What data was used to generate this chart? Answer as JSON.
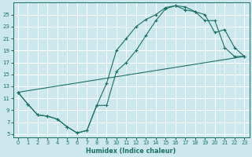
{
  "xlabel": "Humidex (Indice chaleur)",
  "bg_color": "#cce8ec",
  "line_color": "#1a7060",
  "grid_color": "#ffffff",
  "xlim": [
    -0.5,
    23.5
  ],
  "ylim": [
    4.5,
    27
  ],
  "xticks": [
    0,
    1,
    2,
    3,
    4,
    5,
    6,
    7,
    8,
    9,
    10,
    11,
    12,
    13,
    14,
    15,
    16,
    17,
    18,
    19,
    20,
    21,
    22,
    23
  ],
  "yticks": [
    5,
    7,
    9,
    11,
    13,
    15,
    17,
    19,
    21,
    23,
    25
  ],
  "line1_x": [
    0,
    1,
    2,
    3,
    4,
    5,
    6,
    7,
    8,
    9,
    10,
    11,
    12,
    13,
    14,
    15,
    16,
    17,
    18,
    19,
    20,
    21,
    22,
    23
  ],
  "line1_y": [
    12,
    10,
    8.2,
    8.0,
    7.5,
    6.2,
    5.2,
    5.6,
    9.8,
    13.5,
    19.0,
    21.0,
    23.0,
    24.2,
    25.0,
    26.2,
    26.5,
    26.3,
    25.5,
    25.0,
    22.0,
    22.5,
    19.5,
    18.0
  ],
  "line1_markers_x": [
    0,
    1,
    2,
    3,
    4,
    5,
    6,
    7,
    8,
    9,
    10,
    11,
    12,
    13,
    14,
    15,
    16,
    17,
    18,
    19,
    20,
    21,
    22,
    23
  ],
  "line1_markers_y": [
    12,
    10,
    8.2,
    8.0,
    7.5,
    6.2,
    5.2,
    5.6,
    9.8,
    13.5,
    19.0,
    21.0,
    23.0,
    24.2,
    25.0,
    26.2,
    26.5,
    26.3,
    25.5,
    25.0,
    22.0,
    22.5,
    19.5,
    18.0
  ],
  "line2_x": [
    0,
    1,
    2,
    3,
    4,
    5,
    6,
    7,
    8,
    9,
    10,
    11,
    12,
    13,
    14,
    15,
    16,
    17,
    18,
    19,
    20,
    21,
    22,
    23
  ],
  "line2_y": [
    12,
    10,
    8.2,
    8.0,
    7.5,
    6.2,
    5.2,
    5.6,
    9.8,
    9.8,
    15.5,
    17.0,
    19.0,
    21.5,
    24.0,
    26.0,
    26.5,
    25.8,
    25.5,
    24.0,
    24.0,
    19.5,
    18.0,
    18.0
  ],
  "line3_x": [
    0,
    23
  ],
  "line3_y": [
    12,
    18
  ]
}
